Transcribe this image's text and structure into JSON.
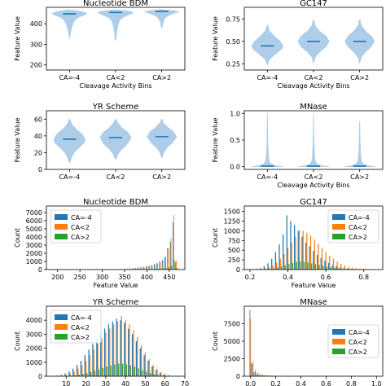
{
  "colors": {
    "c1": "#1f77b4",
    "c2": "#ff7f0e",
    "c3": "#2ca02c",
    "violin": "#aecde8"
  },
  "chart_data": [
    {
      "type": "violin",
      "title": "Nucleotide BDM",
      "xlabel": "Cleavage Activity Bins",
      "ylabel": "Feature Value",
      "categories": [
        "CA=-4",
        "CA<2",
        "CA>2"
      ],
      "ylim": [
        175,
        480
      ],
      "yticks": [
        200,
        300,
        400
      ],
      "ytick_labels": [
        "200",
        "300",
        "400"
      ],
      "medians": [
        448,
        455,
        460
      ],
      "violins": [
        {
          "y": [
            330,
            360,
            390,
            415,
            430,
            440,
            448,
            455,
            462,
            467
          ],
          "w": [
            0.01,
            0.03,
            0.07,
            0.13,
            0.22,
            0.35,
            0.45,
            0.4,
            0.25,
            0.03
          ]
        },
        {
          "y": [
            320,
            360,
            390,
            415,
            430,
            440,
            450,
            458,
            464,
            468
          ],
          "w": [
            0.01,
            0.03,
            0.06,
            0.1,
            0.18,
            0.3,
            0.42,
            0.45,
            0.25,
            0.03
          ]
        },
        {
          "y": [
            380,
            410,
            430,
            440,
            450,
            458,
            464,
            469
          ],
          "w": [
            0.01,
            0.04,
            0.1,
            0.18,
            0.3,
            0.44,
            0.32,
            0.03
          ]
        }
      ]
    },
    {
      "type": "violin",
      "title": "GC147",
      "xlabel": "Cleavage Activity Bins",
      "ylabel": "Feature Value",
      "categories": [
        "CA=-4",
        "CA<2",
        "CA>2"
      ],
      "ylim": [
        0.18,
        0.88
      ],
      "yticks": [
        0.25,
        0.5,
        0.75
      ],
      "ytick_labels": [
        "0.25",
        "0.50",
        "0.75"
      ],
      "medians": [
        0.45,
        0.5,
        0.5
      ],
      "violins": [
        {
          "y": [
            0.24,
            0.3,
            0.36,
            0.42,
            0.45,
            0.5,
            0.56,
            0.62,
            0.68
          ],
          "w": [
            0.01,
            0.06,
            0.22,
            0.38,
            0.4,
            0.33,
            0.18,
            0.05,
            0.01
          ]
        },
        {
          "y": [
            0.26,
            0.32,
            0.38,
            0.44,
            0.5,
            0.56,
            0.62,
            0.68,
            0.74
          ],
          "w": [
            0.01,
            0.04,
            0.16,
            0.32,
            0.4,
            0.32,
            0.14,
            0.04,
            0.01
          ]
        },
        {
          "y": [
            0.26,
            0.32,
            0.38,
            0.44,
            0.5,
            0.56,
            0.62,
            0.68,
            0.74
          ],
          "w": [
            0.01,
            0.04,
            0.15,
            0.3,
            0.38,
            0.3,
            0.14,
            0.04,
            0.01
          ]
        }
      ]
    },
    {
      "type": "violin",
      "title": "YR Scheme",
      "xlabel": "",
      "ylabel": "Feature Value",
      "categories": [
        "CA=-4",
        "CA<2",
        "CA>2"
      ],
      "ylim": [
        0,
        70
      ],
      "yticks": [
        0,
        20,
        40,
        60
      ],
      "ytick_labels": [
        "0",
        "20",
        "40",
        "60"
      ],
      "medians": [
        36,
        38,
        39
      ],
      "violins": [
        {
          "y": [
            8,
            14,
            20,
            26,
            32,
            36,
            42,
            48,
            54,
            60
          ],
          "w": [
            0.01,
            0.05,
            0.12,
            0.25,
            0.38,
            0.4,
            0.33,
            0.18,
            0.06,
            0.01
          ]
        },
        {
          "y": [
            12,
            18,
            24,
            30,
            38,
            44,
            50,
            56,
            60
          ],
          "w": [
            0.01,
            0.06,
            0.16,
            0.3,
            0.4,
            0.32,
            0.16,
            0.05,
            0.01
          ]
        },
        {
          "y": [
            14,
            20,
            26,
            32,
            39,
            45,
            51,
            56,
            60
          ],
          "w": [
            0.01,
            0.05,
            0.14,
            0.28,
            0.38,
            0.3,
            0.14,
            0.04,
            0.01
          ]
        }
      ]
    },
    {
      "type": "violin",
      "title": "MNase",
      "xlabel": "Cleavage Activity Bins",
      "ylabel": "Feature Value",
      "categories": [
        "CA=-4",
        "CA<2",
        "CA>2"
      ],
      "ylim": [
        -0.05,
        1.05
      ],
      "yticks": [
        0,
        0.5,
        1
      ],
      "ytick_labels": [
        "0.0",
        "0.5",
        "1.0"
      ],
      "medians": [
        0.01,
        0.01,
        0.01
      ],
      "violins": [
        {
          "y": [
            0,
            0.02,
            0.05,
            0.1,
            0.2,
            0.35,
            0.5,
            0.7,
            0.9,
            1.0
          ],
          "w": [
            0.4,
            0.22,
            0.1,
            0.05,
            0.03,
            0.02,
            0.012,
            0.008,
            0.005,
            0.003
          ]
        },
        {
          "y": [
            0,
            0.02,
            0.05,
            0.1,
            0.2,
            0.35,
            0.5,
            0.7,
            0.9,
            1.0
          ],
          "w": [
            0.4,
            0.22,
            0.1,
            0.05,
            0.03,
            0.02,
            0.012,
            0.008,
            0.005,
            0.003
          ]
        },
        {
          "y": [
            0,
            0.02,
            0.05,
            0.1,
            0.2,
            0.35,
            0.5,
            0.7,
            0.85
          ],
          "w": [
            0.4,
            0.22,
            0.1,
            0.05,
            0.03,
            0.02,
            0.012,
            0.008,
            0.005
          ]
        }
      ]
    },
    {
      "type": "bar",
      "title": "Nucleotide BDM",
      "xlabel": "Feature Value",
      "ylabel": "Count",
      "xlim": [
        175,
        485
      ],
      "ylim": [
        0,
        7800
      ],
      "xticks": [
        200,
        250,
        300,
        350,
        400,
        450
      ],
      "xtick_labels": [
        "200",
        "250",
        "300",
        "350",
        "400",
        "450"
      ],
      "yticks": [
        0,
        1000,
        2000,
        3000,
        4000,
        5000,
        6000,
        7000
      ],
      "ytick_labels": [
        "0",
        "1000",
        "2000",
        "3000",
        "4000",
        "5000",
        "6000",
        "7000"
      ],
      "legend": "upper left",
      "bin_width": 6,
      "x": [
        340,
        346,
        352,
        358,
        364,
        370,
        376,
        382,
        388,
        394,
        400,
        406,
        412,
        418,
        424,
        430,
        436,
        442,
        448,
        454,
        460,
        466
      ],
      "series": [
        {
          "name": "CA=-4",
          "values": [
            20,
            40,
            60,
            90,
            120,
            160,
            200,
            250,
            300,
            360,
            420,
            500,
            580,
            700,
            820,
            980,
            1200,
            1600,
            2600,
            3400,
            5800,
            900
          ]
        },
        {
          "name": "CA<2",
          "values": [
            10,
            20,
            30,
            50,
            70,
            100,
            130,
            170,
            210,
            260,
            320,
            400,
            480,
            600,
            720,
            880,
            1100,
            1500,
            2600,
            3800,
            6700,
            1100
          ]
        },
        {
          "name": "CA>2",
          "values": [
            0,
            0,
            0,
            5,
            10,
            15,
            20,
            25,
            30,
            40,
            50,
            60,
            70,
            80,
            100,
            120,
            150,
            200,
            300,
            500,
            1200,
            200
          ]
        }
      ]
    },
    {
      "type": "bar",
      "title": "GC147",
      "xlabel": "Feature Value",
      "ylabel": "Count",
      "xlim": [
        0.17,
        0.9
      ],
      "ylim": [
        0,
        1640
      ],
      "xticks": [
        0.2,
        0.4,
        0.6,
        0.8
      ],
      "xtick_labels": [
        "0.2",
        "0.4",
        "0.6",
        "0.8"
      ],
      "yticks": [
        0,
        250,
        500,
        750,
        1000,
        1250,
        1500
      ],
      "ytick_labels": [
        "0",
        "250",
        "500",
        "750",
        "1000",
        "1250",
        "1500"
      ],
      "legend": "upper right",
      "bin_width": 0.02,
      "x": [
        0.24,
        0.26,
        0.28,
        0.3,
        0.32,
        0.34,
        0.36,
        0.38,
        0.4,
        0.42,
        0.44,
        0.46,
        0.48,
        0.5,
        0.52,
        0.54,
        0.56,
        0.58,
        0.6,
        0.62,
        0.64,
        0.66,
        0.68,
        0.7,
        0.72,
        0.74,
        0.76,
        0.78,
        0.8,
        0.82,
        0.84
      ],
      "series": [
        {
          "name": "CA=-4",
          "values": [
            20,
            40,
            90,
            160,
            280,
            450,
            650,
            900,
            1400,
            1250,
            1150,
            1000,
            850,
            700,
            600,
            480,
            380,
            300,
            230,
            170,
            120,
            90,
            60,
            40,
            30,
            20,
            15,
            10,
            8,
            5,
            3
          ]
        },
        {
          "name": "CA<2",
          "values": [
            5,
            15,
            30,
            60,
            110,
            180,
            280,
            400,
            560,
            700,
            850,
            1000,
            1000,
            950,
            880,
            780,
            660,
            560,
            450,
            360,
            280,
            200,
            150,
            110,
            70,
            50,
            35,
            25,
            20,
            10,
            5
          ]
        },
        {
          "name": "CA>2",
          "values": [
            2,
            5,
            10,
            20,
            35,
            55,
            80,
            110,
            140,
            170,
            200,
            210,
            200,
            180,
            160,
            140,
            120,
            100,
            80,
            60,
            45,
            30,
            20,
            15,
            10,
            8,
            5,
            3,
            2,
            1,
            1
          ]
        }
      ]
    },
    {
      "type": "bar",
      "title": "YR Scheme",
      "xlabel": "Feature Value",
      "ylabel": "Count",
      "xlim": [
        0,
        70
      ],
      "ylim": [
        0,
        5000
      ],
      "xticks": [
        10,
        20,
        30,
        40,
        50,
        60,
        70
      ],
      "xtick_labels": [
        "10",
        "20",
        "30",
        "40",
        "50",
        "60",
        "70"
      ],
      "yticks": [
        0,
        1000,
        2000,
        3000,
        4000
      ],
      "ytick_labels": [
        "0",
        "1000",
        "2000",
        "3000",
        "4000"
      ],
      "legend": "upper left",
      "bin_width": 2,
      "x": [
        6,
        8,
        10,
        12,
        14,
        16,
        18,
        20,
        22,
        24,
        26,
        28,
        30,
        32,
        34,
        36,
        38,
        40,
        42,
        44,
        46,
        48,
        50,
        52,
        54,
        56,
        58,
        60,
        62
      ],
      "series": [
        {
          "name": "CA=-4",
          "values": [
            50,
            100,
            200,
            350,
            550,
            800,
            1100,
            1500,
            1900,
            2300,
            2700,
            3100,
            3400,
            3700,
            3900,
            4100,
            4000,
            3800,
            3400,
            3000,
            2500,
            2000,
            1500,
            1100,
            700,
            450,
            250,
            120,
            50
          ]
        },
        {
          "name": "CA<2",
          "values": [
            20,
            50,
            100,
            200,
            350,
            550,
            800,
            1100,
            1500,
            1900,
            2300,
            2700,
            3100,
            3400,
            3700,
            3900,
            4300,
            4000,
            3700,
            3300,
            2800,
            2200,
            1700,
            1200,
            800,
            500,
            300,
            150,
            60
          ]
        },
        {
          "name": "CA>2",
          "values": [
            5,
            10,
            20,
            40,
            70,
            110,
            160,
            230,
            310,
            400,
            500,
            600,
            700,
            780,
            850,
            900,
            900,
            850,
            780,
            680,
            560,
            440,
            330,
            230,
            150,
            90,
            50,
            25,
            10
          ]
        }
      ]
    },
    {
      "type": "bar",
      "title": "MNase",
      "xlabel": "Feature Value",
      "ylabel": "Count",
      "xlim": [
        -0.05,
        1.05
      ],
      "ylim": [
        0,
        10000
      ],
      "xticks": [
        0,
        0.2,
        0.4,
        0.6,
        0.8,
        1
      ],
      "xtick_labels": [
        "0.0",
        "0.2",
        "0.4",
        "0.6",
        "0.8",
        "1.0"
      ],
      "yticks": [
        0,
        2500,
        5000,
        7500
      ],
      "ytick_labels": [
        "0",
        "2500",
        "5000",
        "7500"
      ],
      "legend": "right",
      "bin_width": 0.02,
      "x": [
        0.0,
        0.02,
        0.04,
        0.06,
        0.08,
        0.1,
        0.12,
        0.14,
        0.16,
        0.18,
        0.2,
        0.25,
        0.3,
        0.35,
        0.4,
        0.45,
        0.5
      ],
      "series": [
        {
          "name": "CA=-4",
          "values": [
            9500,
            1800,
            700,
            400,
            250,
            180,
            130,
            100,
            80,
            60,
            50,
            30,
            20,
            15,
            10,
            8,
            5
          ]
        },
        {
          "name": "CA<2",
          "values": [
            8200,
            2200,
            900,
            500,
            300,
            200,
            150,
            110,
            90,
            70,
            55,
            35,
            25,
            15,
            10,
            8,
            5
          ]
        },
        {
          "name": "CA>2",
          "values": [
            1900,
            500,
            200,
            120,
            80,
            60,
            40,
            30,
            25,
            20,
            15,
            10,
            8,
            5,
            3,
            2,
            1
          ]
        }
      ]
    }
  ]
}
